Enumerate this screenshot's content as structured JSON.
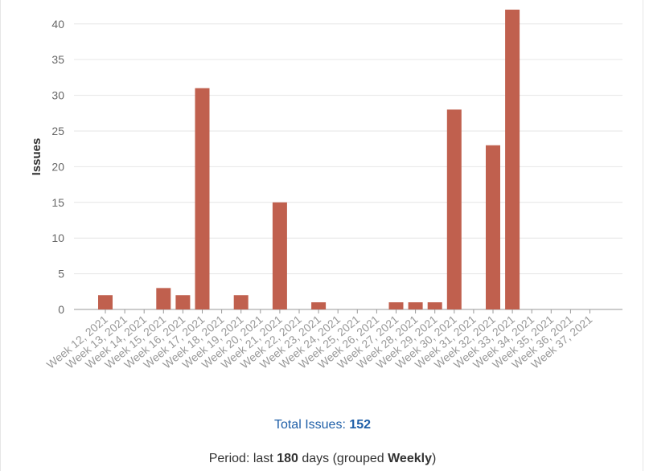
{
  "chart_data": {
    "type": "bar",
    "ylabel": "Issues",
    "xlabel": "",
    "ylim": [
      0,
      42
    ],
    "yticks": [
      0,
      5,
      10,
      15,
      20,
      25,
      30,
      35,
      40
    ],
    "grid": true,
    "categories": [
      "Week 12, 2021",
      "Week 13, 2021",
      "Week 14, 2021",
      "Week 15, 2021",
      "Week 16, 2021",
      "Week 17, 2021",
      "Week 18, 2021",
      "Week 19, 2021",
      "Week 20, 2021",
      "Week 21, 2021",
      "Week 22, 2021",
      "Week 23, 2021",
      "Week 24, 2021",
      "Week 25, 2021",
      "Week 26, 2021",
      "Week 27, 2021",
      "Week 28, 2021",
      "Week 29, 2021",
      "Week 30, 2021",
      "Week 31, 2021",
      "Week 32, 2021",
      "Week 33, 2021",
      "Week 34, 2021",
      "Week 35, 2021",
      "Week 36, 2021",
      "Week 37, 2021"
    ],
    "values": [
      2,
      0,
      0,
      3,
      2,
      31,
      0,
      2,
      0,
      15,
      0,
      1,
      0,
      0,
      0,
      1,
      1,
      1,
      28,
      0,
      23,
      42,
      0,
      0,
      0,
      0
    ],
    "colors": {
      "bar": "#c0604e",
      "grid": "#e6e6e6",
      "axis": "#999999",
      "tick_label": "#666666",
      "x_label": "#999999"
    }
  },
  "summary": {
    "total_label": "Total Issues:",
    "total_value": "152",
    "period_prefix": "Period: last",
    "period_days": "180",
    "period_mid": "days (grouped",
    "period_group": "Weekly",
    "period_suffix": ")"
  }
}
